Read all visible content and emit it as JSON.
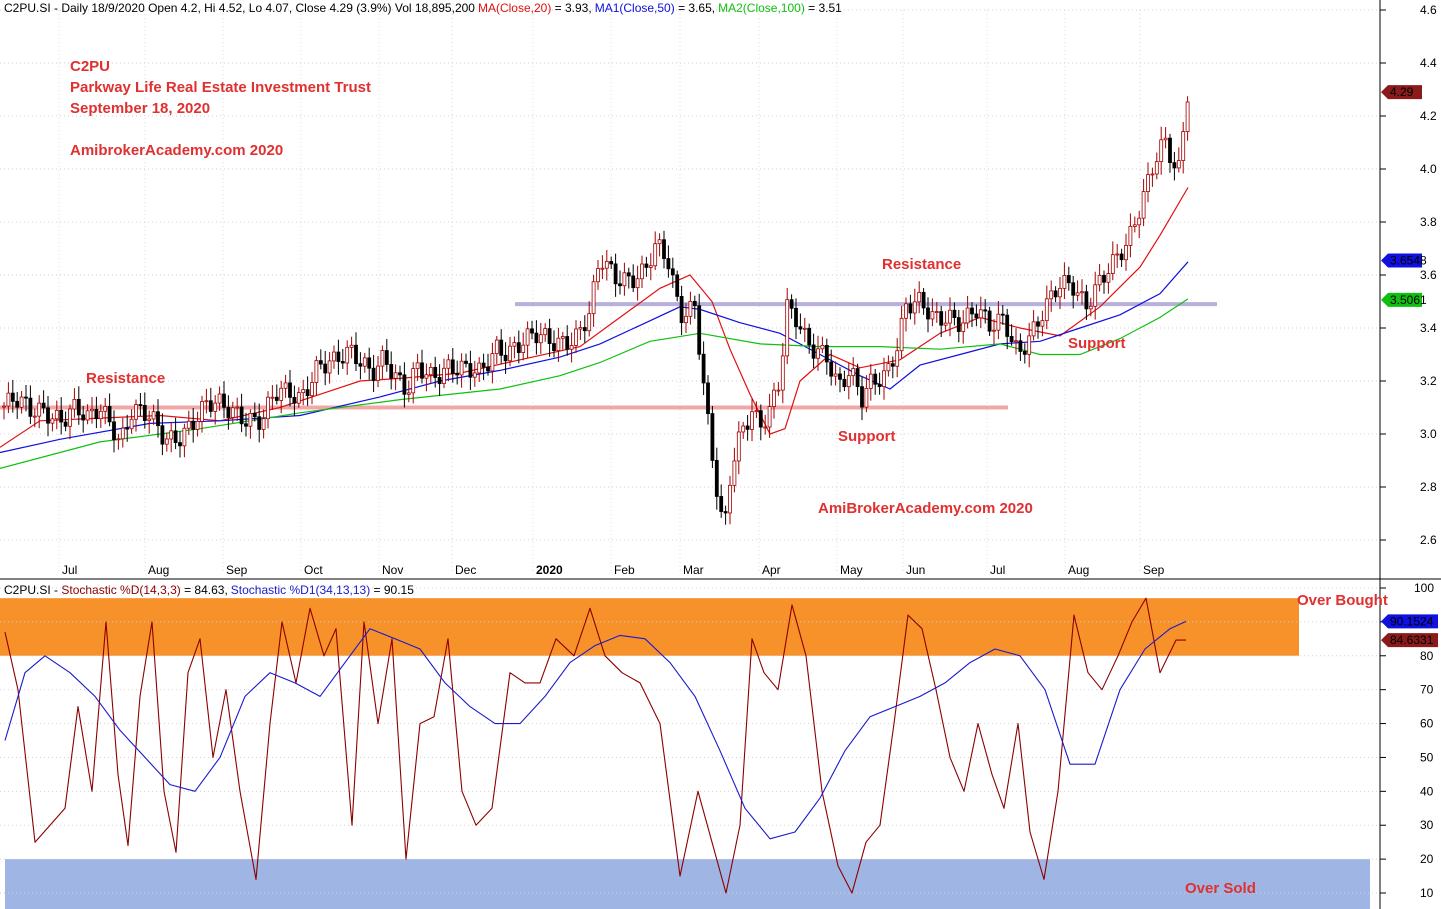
{
  "price_header": {
    "prefix": "C2PU.SI - Daily 18/9/2020 Open 4.2, Hi 4.52, Lo 4.07, Close 4.29 (3.9%) Vol 18,895,200",
    "ma20": "MA(Close,20)",
    "ma20_val": " = 3.93,",
    "ma50": "MA1(Close,50)",
    "ma50_val": " = 3.65,",
    "ma100": "MA2(Close,100)",
    "ma100_val": " = 3.51"
  },
  "stoch_header": {
    "prefix": "C2PU.SI - ",
    "d": "Stochastic %D(14,3,3)",
    "d_val": " = 84.63,",
    "d1": "Stochastic %D1(34,13,13)",
    "d1_val": " = 90.15"
  },
  "annotations": {
    "symbol": "C2PU",
    "company": "Parkway Life Real Estate Investment Trust",
    "date": "September 18, 2020",
    "watermark": "AmibrokerAcademy.com  2020",
    "watermark2": "AmiBrokerAcademy.com  2020",
    "resistance": "Resistance",
    "support": "Support",
    "over_bought": "Over Bought",
    "over_sold": "Over Sold"
  },
  "colors": {
    "ma20": "#e01010",
    "ma50": "#1010e0",
    "ma100": "#10c010",
    "candle_up": "#a00000",
    "candle_down": "#000000",
    "overbought_band": "#f7922b",
    "oversold_band": "#9fb5e3",
    "stoch_d": "#8b0000",
    "stoch_d1": "#1a1acd",
    "note": "#e03030"
  },
  "chart_data": [
    {
      "type": "candlestick",
      "ticker": "C2PU.SI",
      "period": "Daily",
      "last_bar": {
        "date": "18/9/2020",
        "open": 4.2,
        "high": 4.52,
        "low": 4.07,
        "close": 4.29,
        "change_pct": 3.9,
        "volume": 18895200
      },
      "y_ticks": [
        2.6,
        2.8,
        3.0,
        3.2,
        3.4,
        3.6,
        3.8,
        4.0,
        4.2,
        4.4,
        4.6
      ],
      "x_labels": [
        "Jul",
        "Aug",
        "Sep",
        "Oct",
        "Nov",
        "Dec",
        "2020",
        "Feb",
        "Mar",
        "Apr",
        "May",
        "Jun",
        "Jul",
        "Aug",
        "Sep"
      ],
      "price_path": {
        "x": [
          0,
          15,
          30,
          45,
          62,
          75,
          88,
          100,
          112,
          120,
          132,
          150,
          165,
          178,
          196,
          207,
          220,
          235,
          248,
          262,
          275,
          290,
          300,
          318,
          335,
          352,
          372,
          384,
          396,
          407,
          418,
          432,
          448,
          464,
          480,
          497,
          508,
          522,
          536,
          550,
          563,
          578,
          590,
          600,
          615,
          630,
          645,
          656,
          668,
          680,
          695,
          710,
          718,
          724,
          731,
          741,
          752,
          760,
          770,
          780,
          787,
          796,
          806,
          814,
          826,
          838,
          850,
          862,
          872,
          886,
          898,
          906,
          920,
          934,
          948,
          962,
          976,
          990,
          1004,
          1018,
          1032,
          1046,
          1058,
          1072,
          1086,
          1100,
          1114,
          1128,
          1142,
          1155,
          1165,
          1178,
          1188
        ],
        "close": [
          3.1,
          3.12,
          3.08,
          3.1,
          3.06,
          3.09,
          3.04,
          3.1,
          3.05,
          2.98,
          3.09,
          3.05,
          2.98,
          3.0,
          3.06,
          3.1,
          3.1,
          3.09,
          3.07,
          3.05,
          3.14,
          3.15,
          3.14,
          3.27,
          3.26,
          3.3,
          3.25,
          3.3,
          3.2,
          3.14,
          3.25,
          3.23,
          3.26,
          3.23,
          3.22,
          3.34,
          3.32,
          3.34,
          3.36,
          3.35,
          3.36,
          3.38,
          3.45,
          3.65,
          3.59,
          3.6,
          3.62,
          3.7,
          3.64,
          3.45,
          3.5,
          2.98,
          2.75,
          2.6,
          2.85,
          3.0,
          3.1,
          3.05,
          3.1,
          3.2,
          3.46,
          3.42,
          3.35,
          3.33,
          3.32,
          3.18,
          3.22,
          3.12,
          3.2,
          3.24,
          3.35,
          3.48,
          3.48,
          3.43,
          3.46,
          3.43,
          3.46,
          3.39,
          3.44,
          3.32,
          3.38,
          3.46,
          3.55,
          3.58,
          3.5,
          3.57,
          3.63,
          3.72,
          3.9,
          4.05,
          4.1,
          3.95,
          4.29
        ]
      },
      "moving_averages": [
        {
          "name": "MA(Close,20)",
          "last": 3.93,
          "x": [
            0,
            40,
            100,
            160,
            220,
            280,
            320,
            360,
            400,
            460,
            520,
            580,
            620,
            660,
            690,
            712,
            730,
            750,
            770,
            785,
            800,
            830,
            860,
            900,
            940,
            980,
            1020,
            1060,
            1100,
            1140,
            1160,
            1188
          ],
          "y": [
            2.95,
            3.05,
            3.06,
            3.07,
            3.05,
            3.1,
            3.15,
            3.2,
            3.21,
            3.23,
            3.28,
            3.33,
            3.44,
            3.55,
            3.6,
            3.5,
            3.32,
            3.15,
            3.0,
            3.02,
            3.2,
            3.3,
            3.25,
            3.28,
            3.38,
            3.44,
            3.4,
            3.37,
            3.48,
            3.63,
            3.75,
            3.93
          ]
        },
        {
          "name": "MA1(Close,50)",
          "last": 3.65,
          "x": [
            0,
            60,
            150,
            220,
            300,
            380,
            440,
            500,
            560,
            600,
            640,
            680,
            700,
            740,
            780,
            820,
            860,
            890,
            920,
            960,
            1000,
            1040,
            1080,
            1120,
            1160,
            1188
          ],
          "y": [
            2.93,
            2.98,
            3.04,
            3.05,
            3.07,
            3.14,
            3.2,
            3.24,
            3.29,
            3.34,
            3.41,
            3.48,
            3.47,
            3.42,
            3.38,
            3.3,
            3.22,
            3.17,
            3.26,
            3.3,
            3.34,
            3.35,
            3.4,
            3.45,
            3.53,
            3.65
          ]
        },
        {
          "name": "MA2(Close,100)",
          "last": 3.51,
          "x": [
            0,
            100,
            200,
            300,
            400,
            500,
            560,
            600,
            650,
            700,
            760,
            820,
            880,
            940,
            1000,
            1040,
            1080,
            1120,
            1160,
            1188
          ],
          "y": [
            2.87,
            2.97,
            3.02,
            3.08,
            3.13,
            3.17,
            3.22,
            3.27,
            3.35,
            3.38,
            3.34,
            3.33,
            3.33,
            3.32,
            3.34,
            3.3,
            3.3,
            3.36,
            3.44,
            3.51
          ]
        }
      ],
      "horizontal_levels": [
        {
          "label": "Resistance",
          "price": 3.1,
          "x_from": 0,
          "x_to": 1008,
          "color": "#f2a7a7"
        },
        {
          "label": "Resistance",
          "price": 3.49,
          "x_from": 515,
          "x_to": 1217,
          "color": "#b8b0dc"
        }
      ],
      "price_labels": [
        {
          "value": "4.29",
          "price": 4.29,
          "bg": "#8b1a1a"
        },
        {
          "value": "3.6548",
          "price": 3.6548,
          "bg": "#1010e0"
        },
        {
          "value": "3.5061",
          "price": 3.5061,
          "bg": "#10c010"
        }
      ]
    },
    {
      "type": "line",
      "title": "Stochastic",
      "y_ticks": [
        10,
        20,
        30,
        40,
        50,
        60,
        70,
        80,
        90,
        100
      ],
      "bands": [
        {
          "label": "Over Bought",
          "from": 80,
          "to": 97
        },
        {
          "label": "Over Sold",
          "from": 0,
          "to": 20
        }
      ],
      "series": [
        {
          "name": "Stochastic %D(14,3,3)",
          "last": 84.63,
          "x": [
            5,
            18,
            35,
            50,
            65,
            78,
            92,
            106,
            118,
            128,
            140,
            152,
            164,
            176,
            188,
            200,
            213,
            226,
            240,
            256,
            270,
            282,
            296,
            310,
            324,
            336,
            352,
            364,
            378,
            392,
            406,
            420,
            434,
            448,
            462,
            476,
            492,
            510,
            525,
            540,
            556,
            574,
            590,
            605,
            622,
            640,
            660,
            680,
            698,
            712,
            726,
            740,
            752,
            764,
            778,
            792,
            806,
            822,
            838,
            852,
            866,
            880,
            894,
            908,
            922,
            936,
            950,
            964,
            978,
            992,
            1004,
            1018,
            1030,
            1044,
            1058,
            1074,
            1088,
            1102,
            1118,
            1132,
            1146,
            1160,
            1176,
            1186
          ],
          "y": [
            87,
            70,
            25,
            30,
            35,
            65,
            40,
            90,
            45,
            24,
            68,
            90,
            40,
            22,
            75,
            85,
            50,
            70,
            40,
            14,
            60,
            90,
            72,
            94,
            80,
            88,
            30,
            90,
            60,
            85,
            20,
            60,
            62,
            85,
            40,
            30,
            35,
            75,
            72,
            72,
            85,
            80,
            94,
            80,
            75,
            72,
            60,
            15,
            40,
            25,
            10,
            30,
            85,
            75,
            70,
            95,
            80,
            40,
            18,
            10,
            25,
            30,
            60,
            92,
            88,
            70,
            50,
            40,
            60,
            45,
            35,
            60,
            28,
            14,
            40,
            92,
            75,
            70,
            80,
            90,
            97,
            75,
            84.63,
            84.63
          ]
        },
        {
          "name": "Stochastic %D1(34,13,13)",
          "last": 90.15,
          "x": [
            5,
            25,
            45,
            70,
            95,
            120,
            145,
            170,
            195,
            220,
            245,
            270,
            295,
            320,
            345,
            370,
            395,
            420,
            445,
            470,
            495,
            520,
            545,
            570,
            595,
            620,
            645,
            670,
            695,
            720,
            745,
            770,
            795,
            820,
            845,
            870,
            895,
            920,
            945,
            970,
            995,
            1020,
            1045,
            1070,
            1095,
            1120,
            1145,
            1170,
            1186
          ],
          "y": [
            55,
            75,
            80,
            75,
            68,
            58,
            50,
            42,
            40,
            50,
            68,
            75,
            72,
            68,
            78,
            88,
            85,
            82,
            72,
            65,
            60,
            60,
            68,
            78,
            83,
            86,
            85,
            78,
            68,
            52,
            35,
            26,
            28,
            38,
            52,
            62,
            65,
            68,
            72,
            78,
            82,
            80,
            70,
            48,
            48,
            70,
            82,
            88,
            90.15
          ]
        }
      ],
      "value_labels": [
        {
          "value": "90.1524",
          "level": 90.15,
          "bg": "#1010e0"
        },
        {
          "value": "84.6331",
          "level": 84.63,
          "bg": "#8b1a1a"
        }
      ]
    }
  ]
}
